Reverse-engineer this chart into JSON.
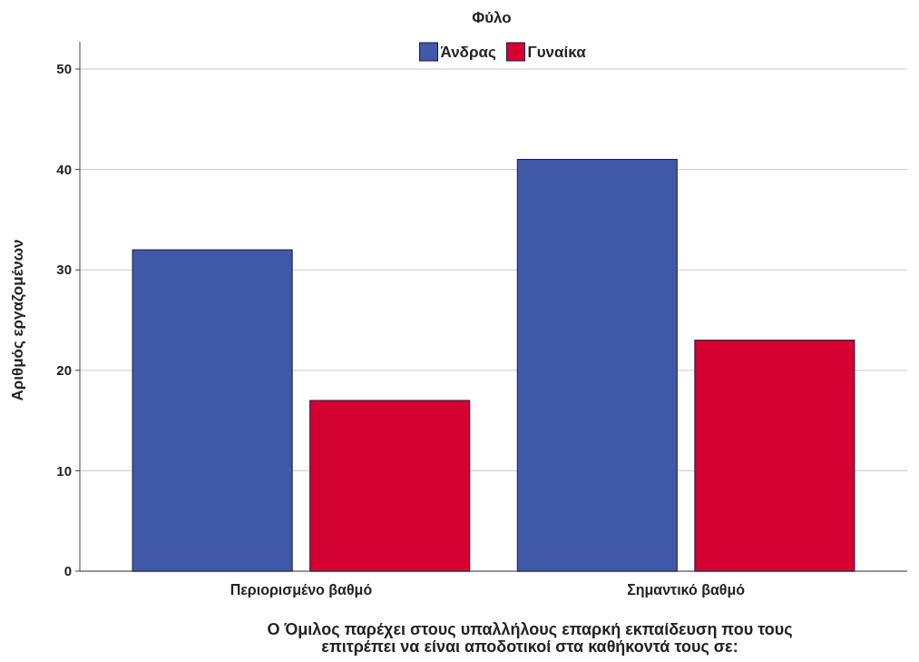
{
  "chart_data": {
    "type": "bar",
    "legend_title": "Φύλο",
    "legend": "top",
    "xlabel": "Ο Όμιλος παρέχει στους υπαλλήλους επαρκή εκπαίδευση που τους\nεπιτρέπει να είναι αποδοτικοί στα καθήκοντά τους σε:",
    "ylabel": "Αριθμός εργαζομένων",
    "categories": [
      "Περιορισμένο βαθμό",
      "Σημαντικό βαθμό"
    ],
    "series": [
      {
        "name": "Άνδρας",
        "color": "#3f59a8",
        "values": [
          32,
          41
        ]
      },
      {
        "name": "Γυναίκα",
        "color": "#d50032",
        "values": [
          17,
          23
        ]
      }
    ],
    "ylim": [
      0,
      50
    ],
    "yticks": [
      0,
      10,
      20,
      30,
      40,
      50
    ],
    "grid": "y"
  }
}
